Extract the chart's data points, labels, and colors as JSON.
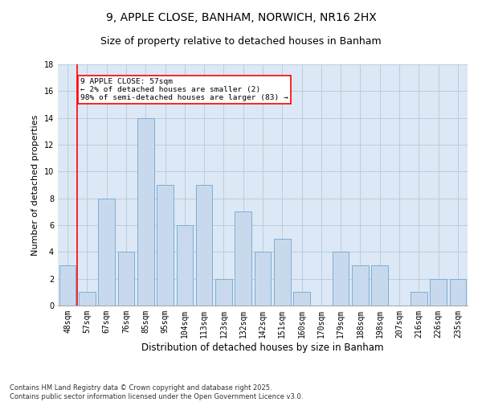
{
  "title": "9, APPLE CLOSE, BANHAM, NORWICH, NR16 2HX",
  "subtitle": "Size of property relative to detached houses in Banham",
  "xlabel": "Distribution of detached houses by size in Banham",
  "ylabel": "Number of detached properties",
  "categories": [
    "48sqm",
    "57sqm",
    "67sqm",
    "76sqm",
    "85sqm",
    "95sqm",
    "104sqm",
    "113sqm",
    "123sqm",
    "132sqm",
    "142sqm",
    "151sqm",
    "160sqm",
    "170sqm",
    "179sqm",
    "188sqm",
    "198sqm",
    "207sqm",
    "216sqm",
    "226sqm",
    "235sqm"
  ],
  "values": [
    3,
    1,
    8,
    4,
    14,
    9,
    6,
    9,
    2,
    7,
    4,
    5,
    1,
    0,
    4,
    3,
    3,
    0,
    1,
    2,
    2
  ],
  "bar_color": "#c8d9ed",
  "bar_edge_color": "#7aafd4",
  "grid_color": "#b8c8d8",
  "bg_color": "#dce8f5",
  "annotation_box_text": "9 APPLE CLOSE: 57sqm\n← 2% of detached houses are smaller (2)\n98% of semi-detached houses are larger (83) →",
  "annotation_box_color": "#ffffff",
  "annotation_box_edge_color": "red",
  "vline_x_index": 1,
  "ylim": [
    0,
    18
  ],
  "yticks": [
    0,
    2,
    4,
    6,
    8,
    10,
    12,
    14,
    16,
    18
  ],
  "footnote": "Contains HM Land Registry data © Crown copyright and database right 2025.\nContains public sector information licensed under the Open Government Licence v3.0.",
  "title_fontsize": 10,
  "subtitle_fontsize": 9,
  "xlabel_fontsize": 8.5,
  "ylabel_fontsize": 8,
  "tick_fontsize": 7,
  "footnote_fontsize": 6,
  "bar_width": 0.85
}
